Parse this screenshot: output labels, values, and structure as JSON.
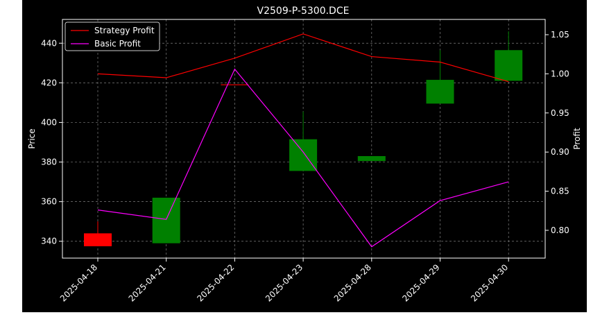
{
  "chart_data": {
    "type": "candlestick",
    "title": "V2509-P-5300.DCE",
    "xlabel": "",
    "ylabel_left": "Price",
    "ylabel_right": "Profit",
    "categories": [
      "2025-04-18",
      "2025-04-21",
      "2025-04-22",
      "2025-04-23",
      "2025-04-28",
      "2025-04-29",
      "2025-04-30"
    ],
    "y_left": {
      "range": [
        331.5,
        452
      ],
      "ticks": [
        340,
        360,
        380,
        400,
        420,
        440
      ]
    },
    "y_right": {
      "range": [
        0.7645,
        1.0695
      ],
      "ticks": [
        "0.80",
        "0.85",
        "0.90",
        "0.95",
        "1.00",
        "1.05"
      ]
    },
    "grid": true,
    "legend_position": "top-left",
    "candles": [
      {
        "date": "2025-04-18",
        "open": 344,
        "high": 350,
        "low": 337.5,
        "close": 337.5,
        "color": "#ff0000"
      },
      {
        "date": "2025-04-21",
        "open": 339,
        "high": 362,
        "low": 339,
        "close": 362,
        "color": "#008000"
      },
      {
        "date": "2025-04-22",
        "open": 419,
        "high": 419,
        "low": 419,
        "close": 419,
        "color": "#ff0000"
      },
      {
        "date": "2025-04-23",
        "open": 375.5,
        "high": 405.5,
        "low": 375.5,
        "close": 391.5,
        "color": "#008000"
      },
      {
        "date": "2025-04-28",
        "open": 380.5,
        "high": 383,
        "low": 380.5,
        "close": 383,
        "color": "#008000"
      },
      {
        "date": "2025-04-29",
        "open": 409.5,
        "high": 436.5,
        "low": 409.5,
        "close": 421.5,
        "color": "#008000"
      },
      {
        "date": "2025-04-30",
        "open": 421,
        "high": 446,
        "low": 421,
        "close": 436.5,
        "color": "#008000"
      }
    ],
    "series": [
      {
        "name": "Strategy Profit",
        "color": "#ff0000",
        "axis": "right",
        "values": [
          1.0,
          0.995,
          1.02,
          1.051,
          1.022,
          1.015,
          0.99
        ]
      },
      {
        "name": "Basic Profit",
        "color": "#ff00ff",
        "axis": "right",
        "values": [
          0.826,
          0.814,
          1.006,
          0.9,
          0.779,
          0.838,
          0.862
        ]
      }
    ]
  }
}
